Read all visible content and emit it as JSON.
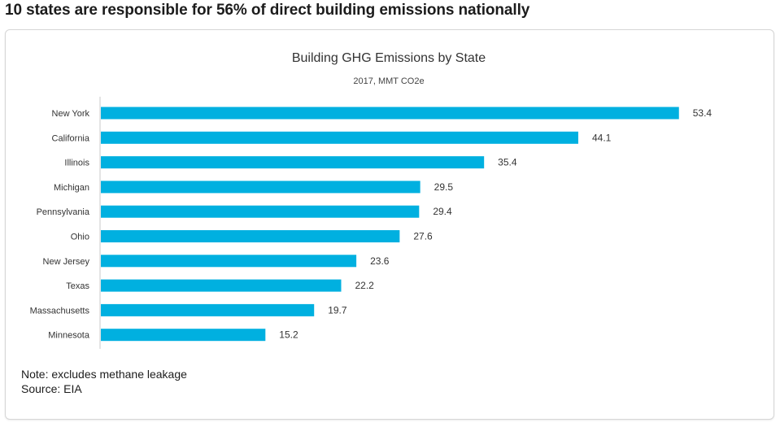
{
  "headline": "10 states are responsible for 56% of direct building emissions nationally",
  "notes": {
    "note": "Note: excludes methane leakage",
    "source": "Source: EIA"
  },
  "colors": {
    "bar": "#00b0e0",
    "axis": "#c8c8c8",
    "text": "#333333"
  },
  "chart_data": {
    "type": "bar",
    "orientation": "horizontal",
    "title": "Building GHG Emissions by State",
    "subtitle": "2017, MMT CO2e",
    "xlabel": "",
    "ylabel": "",
    "grid": false,
    "legend": "none",
    "xlim": [
      0,
      60
    ],
    "categories": [
      "New York",
      "California",
      "Illinois",
      "Michigan",
      "Pennsylvania",
      "Ohio",
      "New Jersey",
      "Texas",
      "Massachusetts",
      "Minnesota"
    ],
    "values": [
      53.4,
      44.1,
      35.4,
      29.5,
      29.4,
      27.6,
      23.6,
      22.2,
      19.7,
      15.2
    ]
  }
}
